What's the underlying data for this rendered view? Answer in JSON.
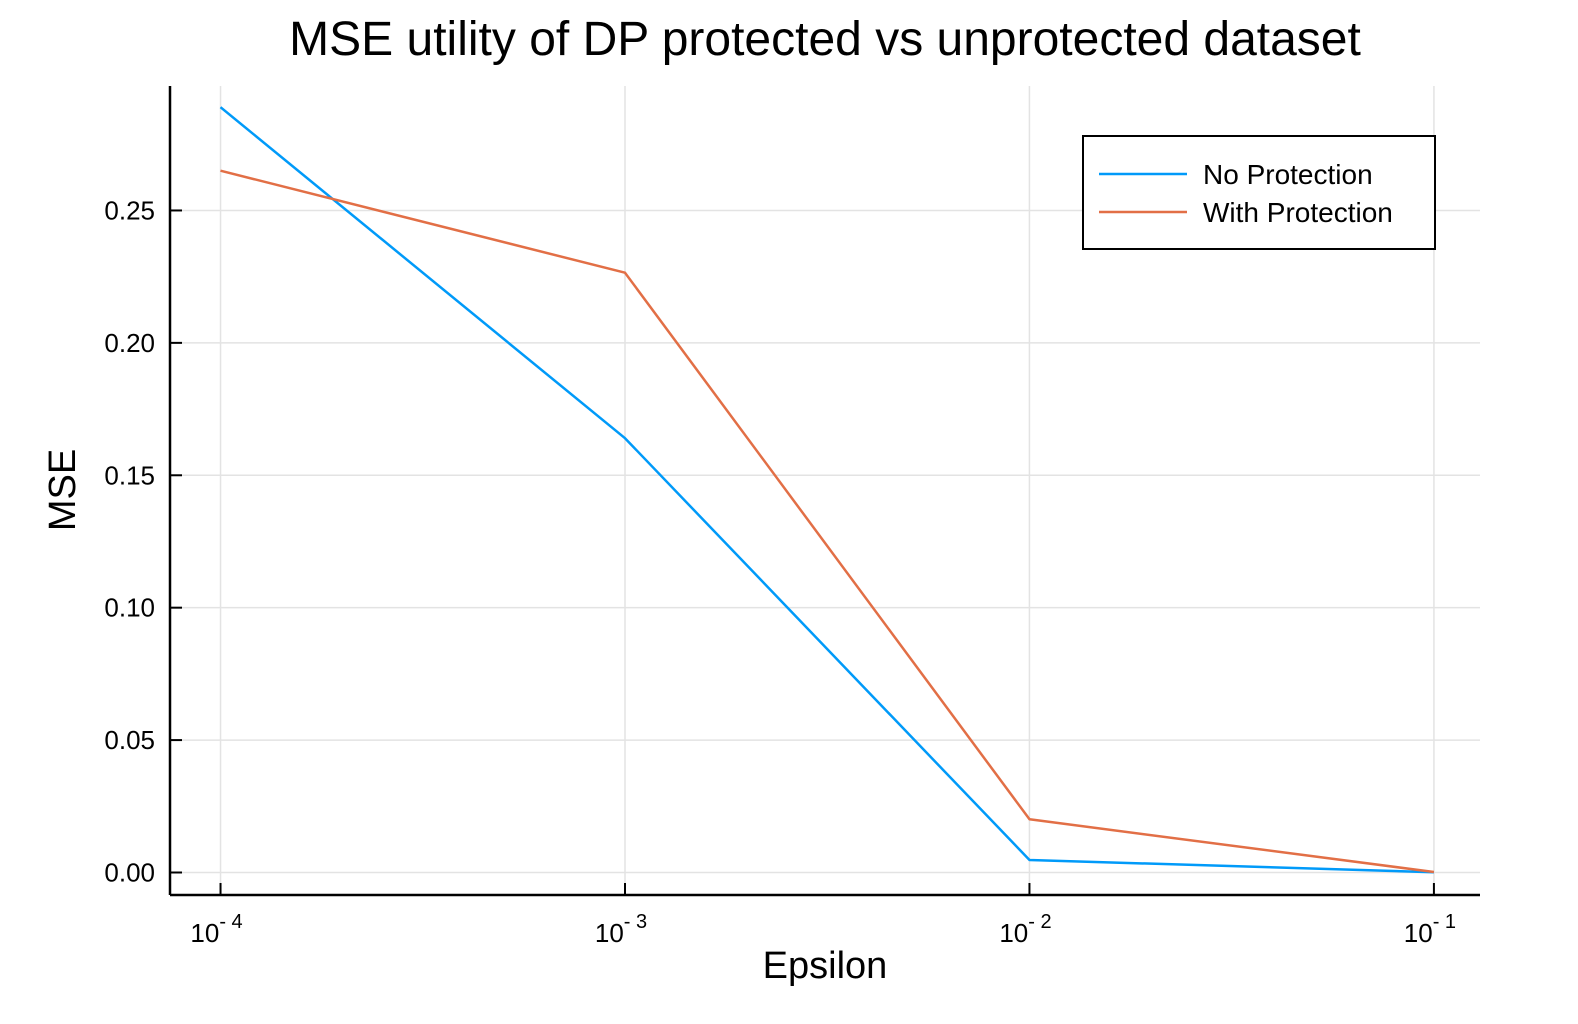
{
  "chart_data": {
    "type": "line",
    "title": "MSE utility of DP protected vs unprotected dataset",
    "xlabel": "Epsilon",
    "ylabel": "MSE",
    "x_scale": "log",
    "x": [
      0.0001,
      0.001,
      0.01,
      0.1
    ],
    "x_ticks": [
      {
        "value": 0.0001,
        "base": "10",
        "exp": "- 4"
      },
      {
        "value": 0.001,
        "base": "10",
        "exp": "- 3"
      },
      {
        "value": 0.01,
        "base": "10",
        "exp": "- 2"
      },
      {
        "value": 0.1,
        "base": "10",
        "exp": "- 1"
      }
    ],
    "y_ticks": [
      "0.00",
      "0.05",
      "0.10",
      "0.15",
      "0.20",
      "0.25"
    ],
    "xlim": [
      7.5e-05,
      0.13
    ],
    "ylim": [
      -0.0085,
      0.297
    ],
    "grid": true,
    "legend_position": "top-right",
    "series": [
      {
        "name": "No Protection",
        "color": "#009af9",
        "values": [
          0.289,
          0.164,
          0.0047,
          0.0001
        ]
      },
      {
        "name": "With Protection",
        "color": "#e26f46",
        "values": [
          0.265,
          0.2265,
          0.0201,
          0.0002
        ]
      }
    ]
  }
}
